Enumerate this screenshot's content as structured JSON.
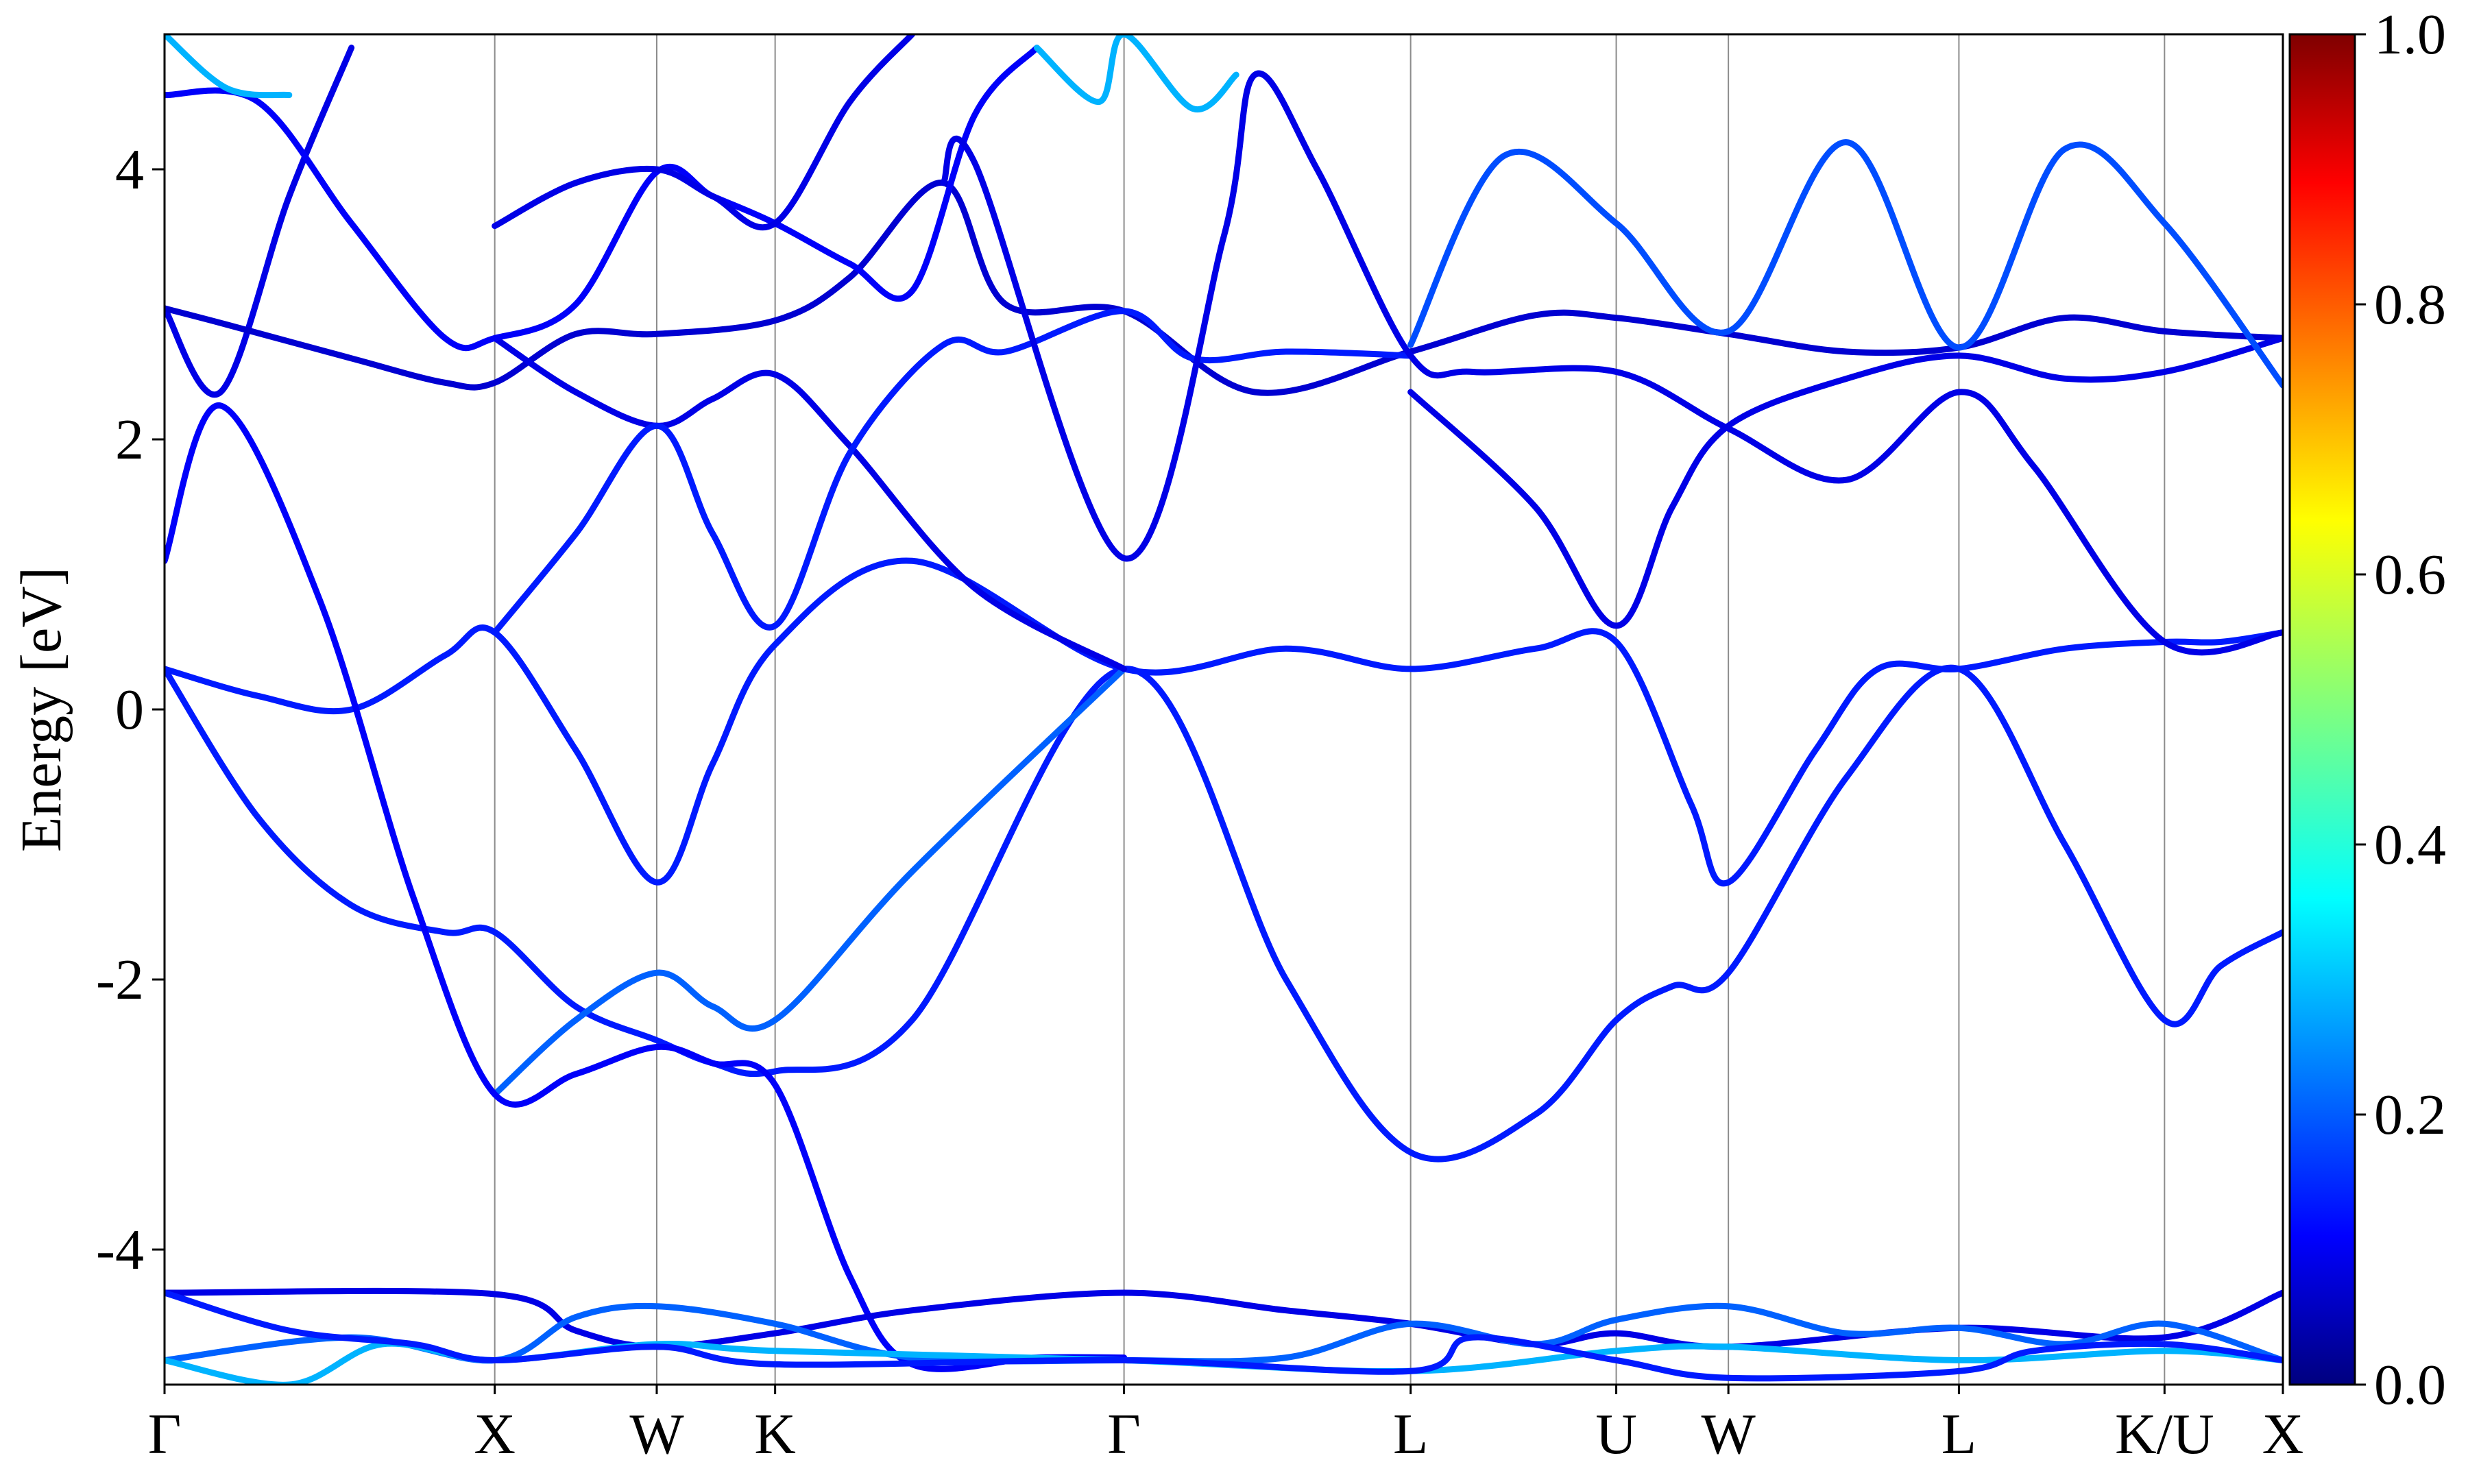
{
  "chart_data": {
    "type": "line",
    "title": "",
    "xlabel": "",
    "ylabel": "Energy [eV]",
    "ylim": [
      -5,
      5
    ],
    "yticks": [
      -4,
      -2,
      0,
      2,
      4
    ],
    "ytick_labels": [
      "-4",
      "-2",
      "0",
      "2",
      "4"
    ],
    "x_range": [
      0,
      3.4
    ],
    "kpoints": [
      {
        "label": "Γ",
        "x": 0.0
      },
      {
        "label": "X",
        "x": 0.53
      },
      {
        "label": "W",
        "x": 0.79
      },
      {
        "label": "K",
        "x": 0.98
      },
      {
        "label": "Γ",
        "x": 1.54
      },
      {
        "label": "L",
        "x": 2.0
      },
      {
        "label": "U",
        "x": 2.33
      },
      {
        "label": "W",
        "x": 2.51
      },
      {
        "label": "L",
        "x": 2.88
      },
      {
        "label": "K/U",
        "x": 3.21
      },
      {
        "label": "X",
        "x": 3.4
      }
    ],
    "colorbar": {
      "min": 0.0,
      "max": 1.0,
      "ticks": [
        "0.0",
        "0.2",
        "0.4",
        "0.6",
        "0.8",
        "1.0"
      ],
      "colormap": "jet"
    },
    "series": [
      {
        "color_value": 0.15,
        "points": [
          [
            0.0,
            0.3
          ],
          [
            0.15,
            0.1
          ],
          [
            0.3,
            0.0
          ],
          [
            0.45,
            0.4
          ],
          [
            0.53,
            0.57
          ],
          [
            0.66,
            -0.3
          ],
          [
            0.79,
            -1.28
          ],
          [
            0.88,
            -0.4
          ],
          [
            0.98,
            0.48
          ],
          [
            1.2,
            1.1
          ],
          [
            1.54,
            0.3
          ],
          [
            1.8,
            0.45
          ],
          [
            2.0,
            0.3
          ],
          [
            2.2,
            0.45
          ],
          [
            2.33,
            0.5
          ],
          [
            2.45,
            -0.7
          ],
          [
            2.51,
            -1.28
          ],
          [
            2.65,
            -0.3
          ],
          [
            2.75,
            0.3
          ],
          [
            2.88,
            0.3
          ],
          [
            3.05,
            0.45
          ],
          [
            3.21,
            0.5
          ],
          [
            3.3,
            0.5
          ],
          [
            3.4,
            0.57
          ]
        ]
      },
      {
        "color_value": 0.15,
        "points": [
          [
            0.0,
            0.3
          ],
          [
            0.15,
            -0.8
          ],
          [
            0.3,
            -1.45
          ],
          [
            0.45,
            -1.65
          ],
          [
            0.53,
            -1.65
          ],
          [
            0.66,
            -2.2
          ],
          [
            0.79,
            -2.45
          ],
          [
            0.88,
            -2.62
          ],
          [
            0.98,
            -2.68
          ],
          [
            1.2,
            -2.3
          ],
          [
            1.54,
            0.3
          ],
          [
            1.8,
            -2.0
          ],
          [
            2.0,
            -3.28
          ],
          [
            2.2,
            -3.0
          ],
          [
            2.33,
            -2.3
          ],
          [
            2.42,
            -2.05
          ],
          [
            2.51,
            -1.95
          ],
          [
            2.7,
            -0.5
          ],
          [
            2.88,
            0.3
          ],
          [
            3.05,
            -1.0
          ],
          [
            3.21,
            -2.3
          ],
          [
            3.3,
            -1.9
          ],
          [
            3.4,
            -1.65
          ]
        ]
      },
      {
        "color_value": 0.22,
        "points": [
          [
            0.53,
            -2.85
          ],
          [
            0.66,
            -2.3
          ],
          [
            0.79,
            -1.95
          ],
          [
            0.88,
            -2.2
          ],
          [
            0.98,
            -2.3
          ],
          [
            1.2,
            -1.2
          ],
          [
            1.54,
            0.3
          ]
        ]
      },
      {
        "color_value": 0.12,
        "points": [
          [
            0.0,
            1.1
          ],
          [
            0.09,
            2.25
          ],
          [
            0.25,
            0.8
          ],
          [
            0.4,
            -1.4
          ],
          [
            0.53,
            -2.85
          ],
          [
            0.66,
            -2.7
          ],
          [
            0.79,
            -2.5
          ],
          [
            0.88,
            -2.62
          ],
          [
            0.98,
            -2.78
          ],
          [
            1.1,
            -4.2
          ],
          [
            1.2,
            -4.85
          ],
          [
            1.4,
            -4.8
          ],
          [
            1.54,
            -4.8
          ]
        ]
      },
      {
        "color_value": 0.1,
        "points": [
          [
            0.0,
            2.97
          ],
          [
            0.09,
            2.35
          ],
          [
            0.2,
            3.8
          ],
          [
            0.3,
            4.9
          ]
        ]
      },
      {
        "color_value": 0.08,
        "points": [
          [
            0.0,
            2.97
          ],
          [
            0.1,
            2.85
          ],
          [
            0.3,
            2.6
          ],
          [
            0.45,
            2.42
          ],
          [
            0.53,
            2.42
          ],
          [
            0.66,
            2.78
          ],
          [
            0.79,
            2.78
          ],
          [
            0.98,
            2.88
          ],
          [
            1.1,
            3.2
          ],
          [
            1.25,
            3.9
          ],
          [
            1.35,
            3.0
          ],
          [
            1.54,
            2.95
          ],
          [
            1.75,
            2.35
          ],
          [
            2.0,
            2.65
          ],
          [
            2.2,
            2.92
          ],
          [
            2.33,
            2.9
          ],
          [
            2.51,
            2.78
          ],
          [
            2.7,
            2.65
          ],
          [
            2.88,
            2.68
          ],
          [
            3.05,
            2.9
          ],
          [
            3.21,
            2.8
          ],
          [
            3.4,
            2.75
          ]
        ]
      },
      {
        "color_value": 0.1,
        "points": [
          [
            0.53,
            2.75
          ],
          [
            0.66,
            2.35
          ],
          [
            0.79,
            2.1
          ],
          [
            0.88,
            2.3
          ],
          [
            0.98,
            2.48
          ],
          [
            1.1,
            1.95
          ],
          [
            1.3,
            0.9
          ],
          [
            1.54,
            0.3
          ]
        ]
      },
      {
        "color_value": 0.15,
        "points": [
          [
            0.53,
            0.57
          ],
          [
            0.66,
            1.3
          ],
          [
            0.79,
            2.1
          ],
          [
            0.88,
            1.3
          ],
          [
            0.98,
            0.62
          ],
          [
            1.1,
            1.9
          ],
          [
            1.25,
            2.7
          ],
          [
            1.35,
            2.65
          ],
          [
            1.54,
            2.95
          ],
          [
            1.65,
            2.6
          ],
          [
            1.8,
            2.65
          ],
          [
            2.0,
            2.62
          ]
        ]
      },
      {
        "color_value": 0.12,
        "points": [
          [
            0.0,
            4.55
          ],
          [
            0.15,
            4.5
          ],
          [
            0.3,
            3.6
          ],
          [
            0.45,
            2.75
          ],
          [
            0.53,
            2.75
          ],
          [
            0.66,
            3.0
          ],
          [
            0.79,
            3.98
          ],
          [
            0.88,
            3.8
          ],
          [
            0.98,
            3.6
          ],
          [
            1.1,
            3.3
          ],
          [
            1.2,
            3.1
          ],
          [
            1.3,
            4.4
          ],
          [
            1.4,
            4.9
          ]
        ]
      },
      {
        "color_value": 0.1,
        "points": [
          [
            0.53,
            3.58
          ],
          [
            0.66,
            3.9
          ],
          [
            0.79,
            4.0
          ],
          [
            0.88,
            3.8
          ],
          [
            0.98,
            3.6
          ],
          [
            1.1,
            4.5
          ],
          [
            1.2,
            5.0
          ]
        ]
      },
      {
        "color_value": 0.1,
        "points": [
          [
            1.25,
            3.9
          ],
          [
            1.3,
            4.05
          ],
          [
            1.54,
            1.12
          ],
          [
            1.7,
            3.5
          ],
          [
            1.75,
            4.7
          ],
          [
            1.85,
            4.0
          ],
          [
            2.0,
            2.62
          ],
          [
            2.1,
            2.5
          ],
          [
            2.33,
            2.5
          ],
          [
            2.51,
            2.08
          ],
          [
            2.7,
            1.7
          ],
          [
            2.88,
            2.35
          ],
          [
            3.0,
            1.8
          ],
          [
            3.21,
            0.5
          ],
          [
            3.4,
            0.57
          ]
        ]
      },
      {
        "color_value": 0.1,
        "points": [
          [
            2.0,
            2.35
          ],
          [
            2.2,
            1.5
          ],
          [
            2.33,
            0.62
          ],
          [
            2.42,
            1.5
          ],
          [
            2.51,
            2.1
          ],
          [
            2.7,
            2.45
          ],
          [
            2.88,
            2.62
          ],
          [
            3.05,
            2.45
          ],
          [
            3.21,
            2.5
          ],
          [
            3.4,
            2.75
          ]
        ]
      },
      {
        "color_value": 0.2,
        "points": [
          [
            2.0,
            2.7
          ],
          [
            2.15,
            4.1
          ],
          [
            2.33,
            3.6
          ],
          [
            2.51,
            2.8
          ],
          [
            2.7,
            4.2
          ],
          [
            2.88,
            2.68
          ],
          [
            3.05,
            4.15
          ],
          [
            3.21,
            3.6
          ],
          [
            3.4,
            2.4
          ]
        ]
      },
      {
        "color_value": 0.3,
        "points": [
          [
            0.0,
            5.0
          ],
          [
            0.1,
            4.6
          ],
          [
            0.2,
            4.55
          ]
        ]
      },
      {
        "color_value": 0.3,
        "points": [
          [
            1.4,
            4.9
          ],
          [
            1.5,
            4.5
          ],
          [
            1.54,
            5.0
          ],
          [
            1.65,
            4.45
          ],
          [
            1.72,
            4.7
          ]
        ]
      },
      {
        "color_value": 0.1,
        "points": [
          [
            0.0,
            -4.32
          ],
          [
            0.53,
            -4.33
          ],
          [
            0.66,
            -4.6
          ],
          [
            0.79,
            -4.72
          ],
          [
            0.98,
            -4.62
          ],
          [
            1.2,
            -4.45
          ],
          [
            1.54,
            -4.32
          ],
          [
            1.8,
            -4.45
          ],
          [
            2.0,
            -4.55
          ],
          [
            2.2,
            -4.7
          ],
          [
            2.33,
            -4.62
          ],
          [
            2.51,
            -4.72
          ],
          [
            2.88,
            -4.58
          ],
          [
            3.21,
            -4.65
          ],
          [
            3.4,
            -4.32
          ]
        ]
      },
      {
        "color_value": 0.22,
        "points": [
          [
            0.0,
            -4.82
          ],
          [
            0.3,
            -4.65
          ],
          [
            0.53,
            -4.82
          ],
          [
            0.66,
            -4.5
          ],
          [
            0.79,
            -4.42
          ],
          [
            0.98,
            -4.55
          ],
          [
            1.2,
            -4.8
          ],
          [
            1.54,
            -4.82
          ],
          [
            1.8,
            -4.8
          ],
          [
            2.0,
            -4.55
          ],
          [
            2.2,
            -4.7
          ],
          [
            2.33,
            -4.52
          ],
          [
            2.51,
            -4.42
          ],
          [
            2.7,
            -4.62
          ],
          [
            2.88,
            -4.58
          ],
          [
            3.05,
            -4.7
          ],
          [
            3.21,
            -4.55
          ],
          [
            3.4,
            -4.82
          ]
        ]
      },
      {
        "color_value": 0.3,
        "points": [
          [
            0.0,
            -4.82
          ],
          [
            0.2,
            -5.0
          ],
          [
            0.35,
            -4.7
          ],
          [
            0.53,
            -4.82
          ],
          [
            0.79,
            -4.7
          ],
          [
            0.98,
            -4.75
          ],
          [
            1.54,
            -4.82
          ],
          [
            2.0,
            -4.9
          ],
          [
            2.33,
            -4.75
          ],
          [
            2.51,
            -4.72
          ],
          [
            2.88,
            -4.82
          ],
          [
            3.21,
            -4.75
          ],
          [
            3.4,
            -4.82
          ]
        ]
      },
      {
        "color_value": 0.15,
        "points": [
          [
            0.0,
            -4.32
          ],
          [
            0.2,
            -4.6
          ],
          [
            0.4,
            -4.7
          ],
          [
            0.53,
            -4.82
          ],
          [
            0.79,
            -4.72
          ],
          [
            0.98,
            -4.85
          ],
          [
            1.54,
            -4.82
          ],
          [
            2.0,
            -4.9
          ],
          [
            2.1,
            -4.65
          ],
          [
            2.33,
            -4.82
          ],
          [
            2.51,
            -4.95
          ],
          [
            2.88,
            -4.9
          ],
          [
            3.0,
            -4.75
          ],
          [
            3.21,
            -4.7
          ],
          [
            3.4,
            -4.82
          ]
        ]
      }
    ]
  }
}
